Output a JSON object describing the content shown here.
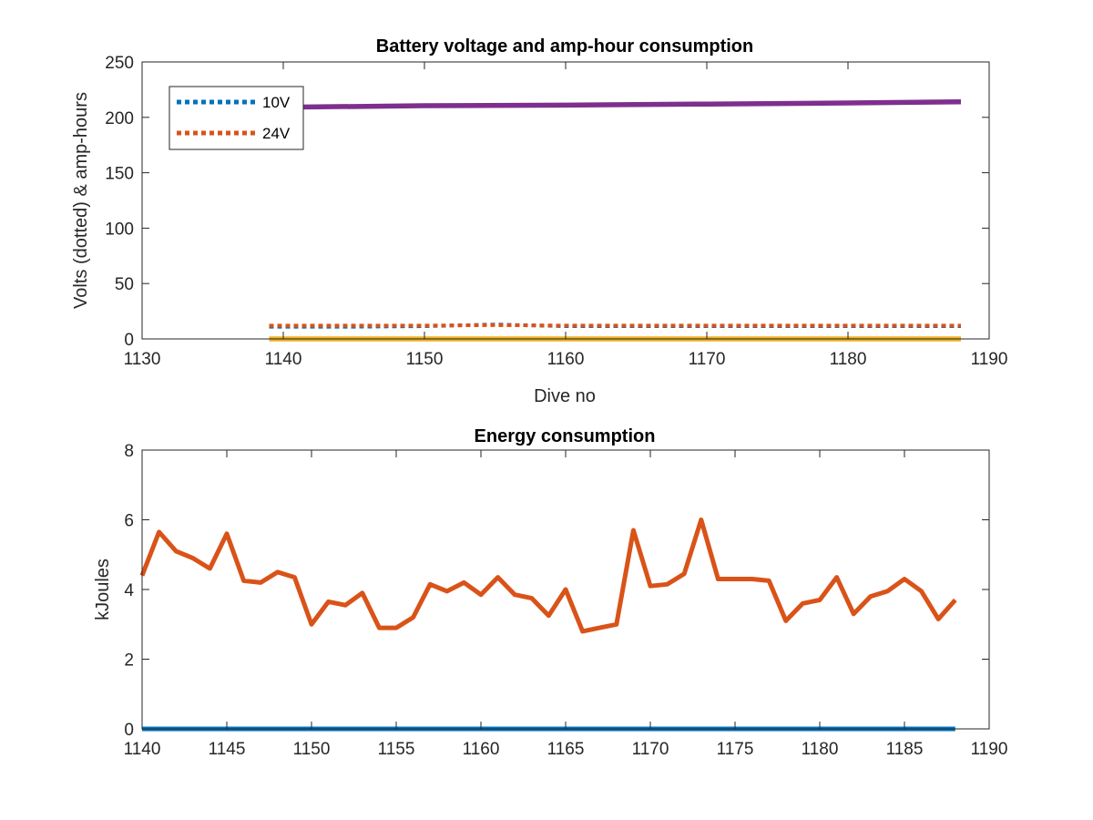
{
  "chart_data": [
    {
      "type": "line",
      "title": "Battery voltage and amp-hour consumption",
      "xlabel": "Dive no",
      "ylabel": "Volts (dotted) & amp-hours",
      "xlim": [
        1130,
        1190
      ],
      "ylim": [
        0,
        250
      ],
      "xticks": [
        "1130",
        "1140",
        "1150",
        "1160",
        "1170",
        "1180",
        "1190"
      ],
      "yticks": [
        "0",
        "50",
        "100",
        "150",
        "200",
        "250"
      ],
      "grid": false,
      "legend_position": "top-left",
      "series": [
        {
          "name": "10V",
          "style": "dotted",
          "color": "#0072BD",
          "x": [
            1139,
            1145,
            1150,
            1155,
            1160,
            1165,
            1170,
            1175,
            1180,
            1185,
            1188
          ],
          "values": [
            11,
            11,
            11.5,
            13,
            11.5,
            11.5,
            11.5,
            11.5,
            11.5,
            11.5,
            11.5
          ]
        },
        {
          "name": "24V",
          "style": "dotted",
          "color": "#D95319",
          "x": [
            1139,
            1145,
            1150,
            1155,
            1160,
            1165,
            1170,
            1175,
            1180,
            1185,
            1188
          ],
          "values": [
            12,
            12,
            12,
            12.5,
            12,
            12,
            12,
            12,
            12,
            12,
            12
          ]
        },
        {
          "style": "solid",
          "color": "#EDB120",
          "x": [
            1139,
            1188
          ],
          "values": [
            0,
            0
          ]
        },
        {
          "style": "solid",
          "color": "#7E2F8E",
          "x": [
            1139,
            1150,
            1160,
            1170,
            1180,
            1188
          ],
          "values": [
            209,
            210.5,
            211,
            212,
            213,
            214
          ]
        }
      ]
    },
    {
      "type": "line",
      "title": "Energy consumption",
      "xlabel": "",
      "ylabel": "kJoules",
      "xlim": [
        1140,
        1190
      ],
      "ylim": [
        0,
        8
      ],
      "xticks": [
        "1140",
        "1145",
        "1150",
        "1155",
        "1160",
        "1165",
        "1170",
        "1175",
        "1180",
        "1185",
        "1190"
      ],
      "yticks": [
        "0",
        "2",
        "4",
        "6",
        "8"
      ],
      "grid": false,
      "series": [
        {
          "style": "solid",
          "color": "#0072BD",
          "x": [
            1140,
            1188
          ],
          "values": [
            0,
            0
          ]
        },
        {
          "style": "solid",
          "color": "#D95319",
          "x": [
            1140,
            1141,
            1142,
            1143,
            1144,
            1145,
            1146,
            1147,
            1148,
            1149,
            1150,
            1151,
            1152,
            1153,
            1154,
            1155,
            1156,
            1157,
            1158,
            1159,
            1160,
            1161,
            1162,
            1163,
            1164,
            1165,
            1166,
            1167,
            1168,
            1169,
            1170,
            1171,
            1172,
            1173,
            1174,
            1175,
            1176,
            1177,
            1178,
            1179,
            1180,
            1181,
            1182,
            1183,
            1184,
            1185,
            1186,
            1187,
            1188
          ],
          "values": [
            4.4,
            5.65,
            5.1,
            4.9,
            4.6,
            5.6,
            4.25,
            4.2,
            4.5,
            4.35,
            3.0,
            3.65,
            3.55,
            3.9,
            2.9,
            2.9,
            3.2,
            4.15,
            3.95,
            4.2,
            3.85,
            4.35,
            3.85,
            3.75,
            3.25,
            4.0,
            2.8,
            2.9,
            3.0,
            5.7,
            4.1,
            4.15,
            4.45,
            6.0,
            4.3,
            4.3,
            4.3,
            4.25,
            3.1,
            3.6,
            3.7,
            4.35,
            3.3,
            3.8,
            3.95,
            4.3,
            3.95,
            3.15,
            3.7
          ]
        }
      ]
    }
  ]
}
